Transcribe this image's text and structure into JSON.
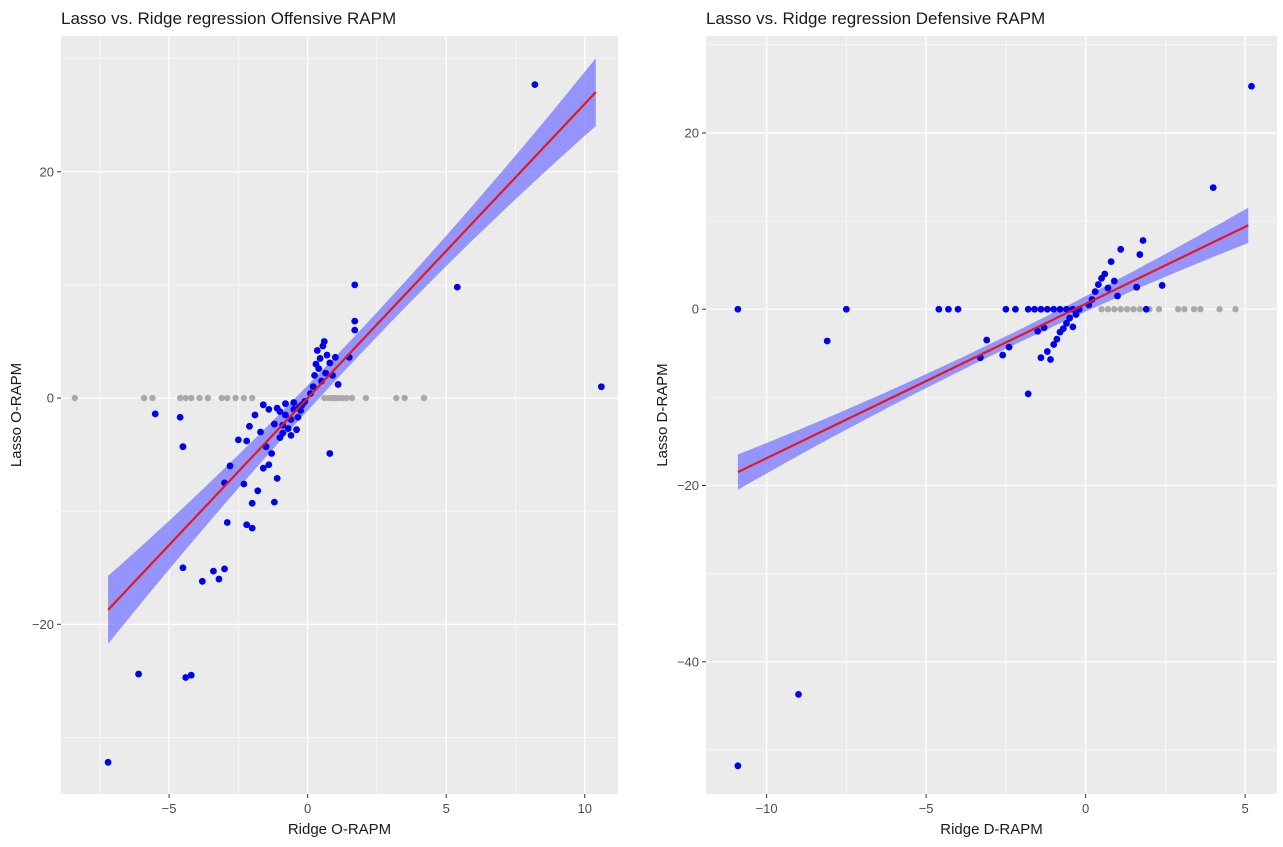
{
  "chart_data": [
    {
      "type": "scatter",
      "title": "Lasso vs. Ridge regression Offensive RAPM",
      "xlabel": "Ridge O-RAPM",
      "ylabel": "Lasso O-RAPM",
      "xlim": [
        -8.9,
        11.2
      ],
      "ylim": [
        -35,
        32
      ],
      "x_ticks": [
        -5,
        0,
        5,
        10
      ],
      "y_ticks": [
        -20,
        0,
        20
      ],
      "grid": true,
      "colors": {
        "selected": "#0000ee",
        "zeroed": "#a9a9a9",
        "fit_line": "#e31a1c",
        "ribbon": "#7777ff",
        "panel": "#ebebeb"
      },
      "fit": {
        "x_range": [
          -7.2,
          10.4
        ],
        "intercept": 0.0,
        "slope": 2.6,
        "ribbon_half_width_at_ends": 3.0
      },
      "series": [
        {
          "points": [
            [
              -7.2,
              -32.2
            ],
            [
              -6.1,
              -24.4
            ],
            [
              -4.4,
              -24.7
            ],
            [
              -4.2,
              -24.5
            ],
            [
              -3.8,
              -16.2
            ],
            [
              -3.4,
              -15.3
            ],
            [
              -3.2,
              -16.0
            ],
            [
              -3.0,
              -15.1
            ],
            [
              -4.5,
              -15.0
            ],
            [
              -4.6,
              -1.7
            ],
            [
              -5.5,
              -1.4
            ],
            [
              -4.5,
              -4.3
            ],
            [
              -2.9,
              -11.0
            ],
            [
              -2.2,
              -11.2
            ],
            [
              -2.0,
              -11.5
            ],
            [
              -3.0,
              -7.5
            ],
            [
              -2.8,
              -6.0
            ],
            [
              -2.5,
              -3.7
            ],
            [
              -2.2,
              -3.8
            ],
            [
              -2.3,
              -7.6
            ],
            [
              -2.0,
              -9.3
            ],
            [
              -1.8,
              -8.2
            ],
            [
              -1.6,
              -6.2
            ],
            [
              -1.4,
              -5.9
            ],
            [
              -1.2,
              -9.2
            ],
            [
              -1.1,
              -7.1
            ],
            [
              -1.5,
              -4.3
            ],
            [
              -1.3,
              -4.9
            ],
            [
              -1.0,
              -3.5
            ],
            [
              -0.9,
              -2.4
            ],
            [
              -0.8,
              -1.5
            ],
            [
              -0.7,
              -2.7
            ],
            [
              -0.6,
              -1.9
            ],
            [
              -0.5,
              -1.0
            ],
            [
              -0.4,
              -2.8
            ],
            [
              -0.3,
              -0.8
            ],
            [
              -0.2,
              -0.6
            ],
            [
              -0.1,
              -0.3
            ],
            [
              -2.1,
              -2.5
            ],
            [
              -1.9,
              -1.5
            ],
            [
              -1.7,
              -3.0
            ],
            [
              -1.2,
              -2.3
            ],
            [
              -1.0,
              -1.2
            ],
            [
              -0.9,
              -3.1
            ],
            [
              -0.6,
              -3.3
            ],
            [
              -0.5,
              -0.4
            ],
            [
              -0.35,
              -1.7
            ],
            [
              -0.25,
              -1.1
            ],
            [
              -1.6,
              -0.6
            ],
            [
              -1.4,
              -1.0
            ],
            [
              -1.1,
              -0.9
            ],
            [
              -0.8,
              -0.5
            ],
            [
              0.1,
              0.4
            ],
            [
              0.2,
              1.0
            ],
            [
              0.25,
              2.0
            ],
            [
              0.3,
              3.0
            ],
            [
              0.35,
              4.2
            ],
            [
              0.4,
              2.6
            ],
            [
              0.45,
              3.5
            ],
            [
              0.5,
              1.5
            ],
            [
              0.55,
              4.6
            ],
            [
              0.6,
              5.0
            ],
            [
              0.65,
              2.2
            ],
            [
              0.7,
              3.8
            ],
            [
              0.8,
              3.1
            ],
            [
              0.9,
              2.0
            ],
            [
              1.0,
              3.6
            ],
            [
              1.1,
              1.2
            ],
            [
              1.5,
              3.6
            ],
            [
              1.7,
              6.0
            ],
            [
              1.7,
              6.8
            ],
            [
              1.7,
              10.0
            ],
            [
              0.8,
              -4.9
            ],
            [
              5.4,
              9.8
            ],
            [
              8.2,
              27.7
            ],
            [
              10.6,
              1.0
            ]
          ]
        },
        {
          "points": [
            [
              -8.4,
              0
            ],
            [
              -5.9,
              0
            ],
            [
              -5.6,
              0
            ],
            [
              -4.6,
              0
            ],
            [
              -4.4,
              0
            ],
            [
              -4.2,
              0
            ],
            [
              -3.9,
              0
            ],
            [
              -3.6,
              0
            ],
            [
              -3.1,
              0
            ],
            [
              -2.9,
              0
            ],
            [
              -2.6,
              0
            ],
            [
              -2.3,
              0
            ],
            [
              -2.0,
              0
            ],
            [
              0.6,
              0
            ],
            [
              0.75,
              0
            ],
            [
              0.9,
              0
            ],
            [
              1.0,
              0
            ],
            [
              1.1,
              0
            ],
            [
              1.25,
              0
            ],
            [
              1.4,
              0
            ],
            [
              1.6,
              0
            ],
            [
              2.1,
              0
            ],
            [
              3.2,
              0
            ],
            [
              3.5,
              0
            ],
            [
              4.2,
              0
            ]
          ]
        }
      ]
    },
    {
      "type": "scatter",
      "title": "Lasso vs. Ridge regression Defensive RAPM",
      "xlabel": "Ridge D-RAPM",
      "ylabel": "Lasso D-RAPM",
      "xlim": [
        -11.9,
        6.0
      ],
      "ylim": [
        -55,
        31
      ],
      "x_ticks": [
        -10,
        -5,
        0,
        5
      ],
      "y_ticks": [
        -40,
        -20,
        0,
        20
      ],
      "grid": true,
      "colors": {
        "selected": "#0000ee",
        "zeroed": "#a9a9a9",
        "fit_line": "#e31a1c",
        "ribbon": "#7777ff",
        "panel": "#ebebeb"
      },
      "fit": {
        "x_range": [
          -10.9,
          5.1
        ],
        "intercept": 0.6,
        "slope": 1.75,
        "ribbon_half_width_at_ends": 2.0
      },
      "series": [
        {
          "points": [
            [
              -10.9,
              -51.8
            ],
            [
              -9.0,
              -43.7
            ],
            [
              -10.9,
              0.0
            ],
            [
              -8.1,
              -3.6
            ],
            [
              -7.5,
              0.0
            ],
            [
              -4.6,
              0.0
            ],
            [
              -4.3,
              0.0
            ],
            [
              -4.0,
              0.0
            ],
            [
              -3.1,
              -3.5
            ],
            [
              -3.3,
              -5.5
            ],
            [
              -2.6,
              -5.2
            ],
            [
              -2.4,
              -4.3
            ],
            [
              -2.5,
              0.0
            ],
            [
              -2.2,
              0.0
            ],
            [
              -1.8,
              0.0
            ],
            [
              -1.6,
              0.0
            ],
            [
              -1.4,
              0.0
            ],
            [
              -1.2,
              0.0
            ],
            [
              -1.0,
              0.0
            ],
            [
              -0.8,
              0.0
            ],
            [
              -0.6,
              0.0
            ],
            [
              -0.4,
              0.0
            ],
            [
              -0.2,
              0.0
            ],
            [
              -1.8,
              -9.6
            ],
            [
              -1.5,
              -2.5
            ],
            [
              -1.4,
              -5.5
            ],
            [
              -1.2,
              -4.8
            ],
            [
              -1.0,
              -4.0
            ],
            [
              -0.9,
              -3.4
            ],
            [
              -0.8,
              -2.6
            ],
            [
              -0.7,
              -2.2
            ],
            [
              -0.6,
              -1.6
            ],
            [
              -0.5,
              -1.0
            ],
            [
              -0.4,
              -2.0
            ],
            [
              -0.3,
              -0.6
            ],
            [
              -1.1,
              -5.7
            ],
            [
              -1.3,
              -2.1
            ],
            [
              0.1,
              0.5
            ],
            [
              0.2,
              1.1
            ],
            [
              0.3,
              2.0
            ],
            [
              0.4,
              2.8
            ],
            [
              0.5,
              3.5
            ],
            [
              0.6,
              4.0
            ],
            [
              0.7,
              2.4
            ],
            [
              0.8,
              5.4
            ],
            [
              0.9,
              3.2
            ],
            [
              1.0,
              1.5
            ],
            [
              1.1,
              6.8
            ],
            [
              1.6,
              2.5
            ],
            [
              1.7,
              6.2
            ],
            [
              1.8,
              7.8
            ],
            [
              1.9,
              0.0
            ],
            [
              2.4,
              2.7
            ],
            [
              4.0,
              13.8
            ],
            [
              5.2,
              25.3
            ]
          ]
        },
        {
          "points": [
            [
              0.5,
              0
            ],
            [
              0.7,
              0
            ],
            [
              0.9,
              0
            ],
            [
              1.1,
              0
            ],
            [
              1.3,
              0
            ],
            [
              1.5,
              0
            ],
            [
              1.7,
              0
            ],
            [
              2.0,
              0
            ],
            [
              2.3,
              0
            ],
            [
              2.9,
              0
            ],
            [
              3.1,
              0
            ],
            [
              3.4,
              0
            ],
            [
              3.6,
              0
            ],
            [
              4.2,
              0
            ],
            [
              4.7,
              0
            ]
          ]
        }
      ]
    }
  ]
}
